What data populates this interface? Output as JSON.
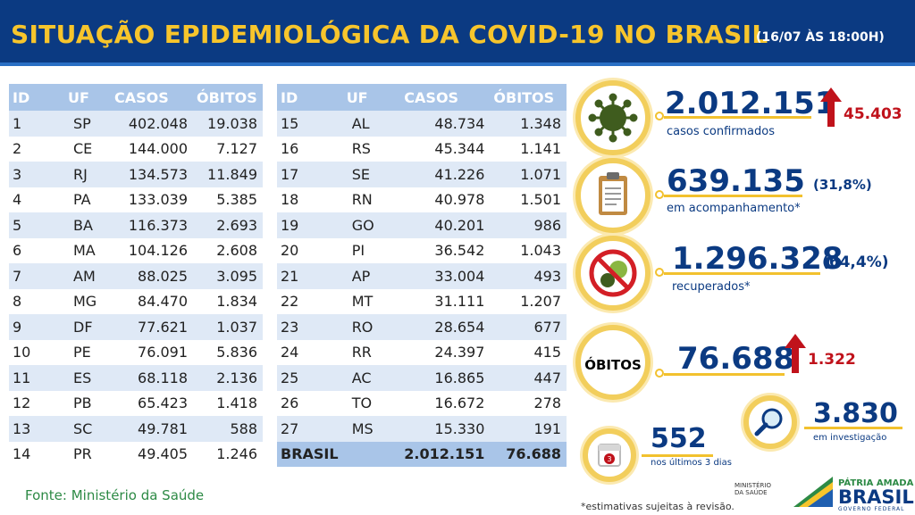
{
  "header": {
    "title": "SITUAÇÃO EPIDEMIOLÓGICA DA COVID-19 NO BRASIL",
    "date": "(16/07 ÀS 18:00H)"
  },
  "table": {
    "columns": [
      "ID",
      "UF",
      "CASOS",
      "ÓBITOS"
    ],
    "rows_left": [
      [
        "1",
        "SP",
        "402.048",
        "19.038"
      ],
      [
        "2",
        "CE",
        "144.000",
        "7.127"
      ],
      [
        "3",
        "RJ",
        "134.573",
        "11.849"
      ],
      [
        "4",
        "PA",
        "133.039",
        "5.385"
      ],
      [
        "5",
        "BA",
        "116.373",
        "2.693"
      ],
      [
        "6",
        "MA",
        "104.126",
        "2.608"
      ],
      [
        "7",
        "AM",
        "88.025",
        "3.095"
      ],
      [
        "8",
        "MG",
        "84.470",
        "1.834"
      ],
      [
        "9",
        "DF",
        "77.621",
        "1.037"
      ],
      [
        "10",
        "PE",
        "76.091",
        "5.836"
      ],
      [
        "11",
        "ES",
        "68.118",
        "2.136"
      ],
      [
        "12",
        "PB",
        "65.423",
        "1.418"
      ],
      [
        "13",
        "SC",
        "49.781",
        "588"
      ],
      [
        "14",
        "PR",
        "49.405",
        "1.246"
      ]
    ],
    "rows_right": [
      [
        "15",
        "AL",
        "48.734",
        "1.348"
      ],
      [
        "16",
        "RS",
        "45.344",
        "1.141"
      ],
      [
        "17",
        "SE",
        "41.226",
        "1.071"
      ],
      [
        "18",
        "RN",
        "40.978",
        "1.501"
      ],
      [
        "19",
        "GO",
        "40.201",
        "986"
      ],
      [
        "20",
        "PI",
        "36.542",
        "1.043"
      ],
      [
        "21",
        "AP",
        "33.004",
        "493"
      ],
      [
        "22",
        "MT",
        "31.111",
        "1.207"
      ],
      [
        "23",
        "RO",
        "28.654",
        "677"
      ],
      [
        "24",
        "RR",
        "24.397",
        "415"
      ],
      [
        "25",
        "AC",
        "16.865",
        "447"
      ],
      [
        "26",
        "TO",
        "16.672",
        "278"
      ],
      [
        "27",
        "MS",
        "15.330",
        "191"
      ]
    ],
    "total": {
      "label": "BRASIL",
      "casos": "2.012.151",
      "obitos": "76.688"
    }
  },
  "stats": {
    "confirmed": {
      "value": "2.012.151",
      "label": "casos confirmados",
      "delta": "45.403",
      "icon": "virus-icon"
    },
    "monitoring": {
      "value": "639.135",
      "pct": "(31,8%)",
      "label": "em acompanhamento*",
      "icon": "clipboard-icon"
    },
    "recovered": {
      "value": "1.296.328",
      "pct": "(64,4%)",
      "label": "recuperados*",
      "icon": "no-virus-icon"
    },
    "deaths": {
      "badge": "ÓBITOS",
      "value": "76.688",
      "delta": "1.322"
    },
    "investigation": {
      "value": "3.830",
      "label": "em investigação",
      "icon": "magnifier-icon"
    },
    "last3": {
      "value": "552",
      "label": "nos últimos 3 dias",
      "icon": "calendar-icon",
      "icon_text": "3"
    }
  },
  "footer": {
    "source": "Fonte: Ministério da Saúde",
    "note": "*estimativas sujeitas à revisão.",
    "ministry": "MINISTÉRIO DA SAÚDE",
    "brand_top": "PÁTRIA AMADA",
    "brand_main": "BRASIL",
    "brand_sub": "GOVERNO FEDERAL"
  },
  "colors": {
    "navy": "#0b3a82",
    "gold": "#f7c52c",
    "red": "#c0121b",
    "green": "#2d8a45"
  }
}
